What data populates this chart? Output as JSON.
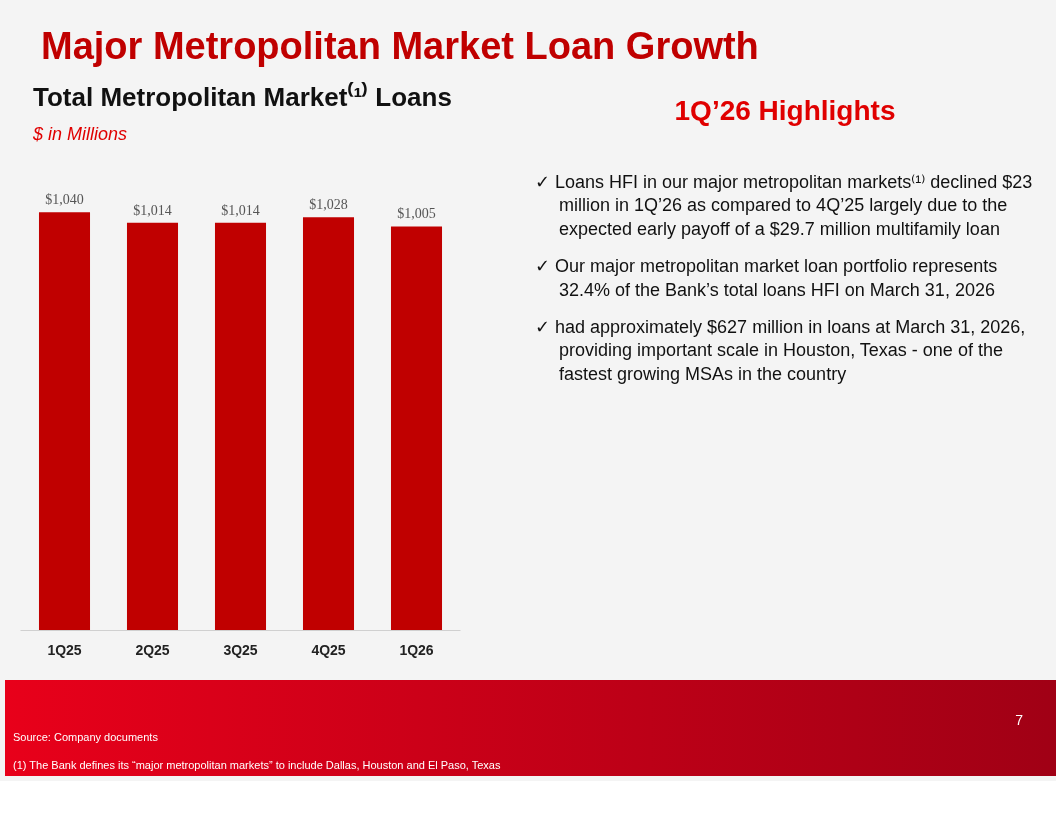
{
  "chart_data": {
    "type": "bar",
    "title": "Major Metropolitan Market Loan Growth",
    "subtitle": "Total Metropolitan Market⁽¹⁾ Loans",
    "categories": [
      "1Q25",
      "2Q25",
      "3Q25",
      "4Q25",
      "1Q26"
    ],
    "values": [
      1040,
      1014,
      1014,
      1028,
      1005
    ],
    "value_labels": [
      "$1,040",
      "$1,014",
      "$1,014",
      "$1,028",
      "$1,005"
    ],
    "color": "#c00000",
    "tick_labels": "x",
    "grid": false,
    "annotations": [
      "$ in Millions",
      "1Q’26 Highlights",
      "✓ Loans HFI in our major metropolitan markets⁽¹⁾ declined $23 million in 1Q’26 as compared to 4Q’25 largely due to the expected early payoff of a $29.7 million multifamily loan",
      "✓ Our major metropolitan market loan portfolio represents 32.4% of the Bank’s total loans HFI on March 31, 2026",
      "✓ had approximately $627 million in loans at March 31, 2026, providing important scale in Houston, Texas - one of the fastest growing MSAs in the country",
      "Source: Company documents",
      "(1)    The Bank defines its “major metropolitan markets” to include Dallas, Houston and El Paso, Texas",
      "7"
    ]
  }
}
